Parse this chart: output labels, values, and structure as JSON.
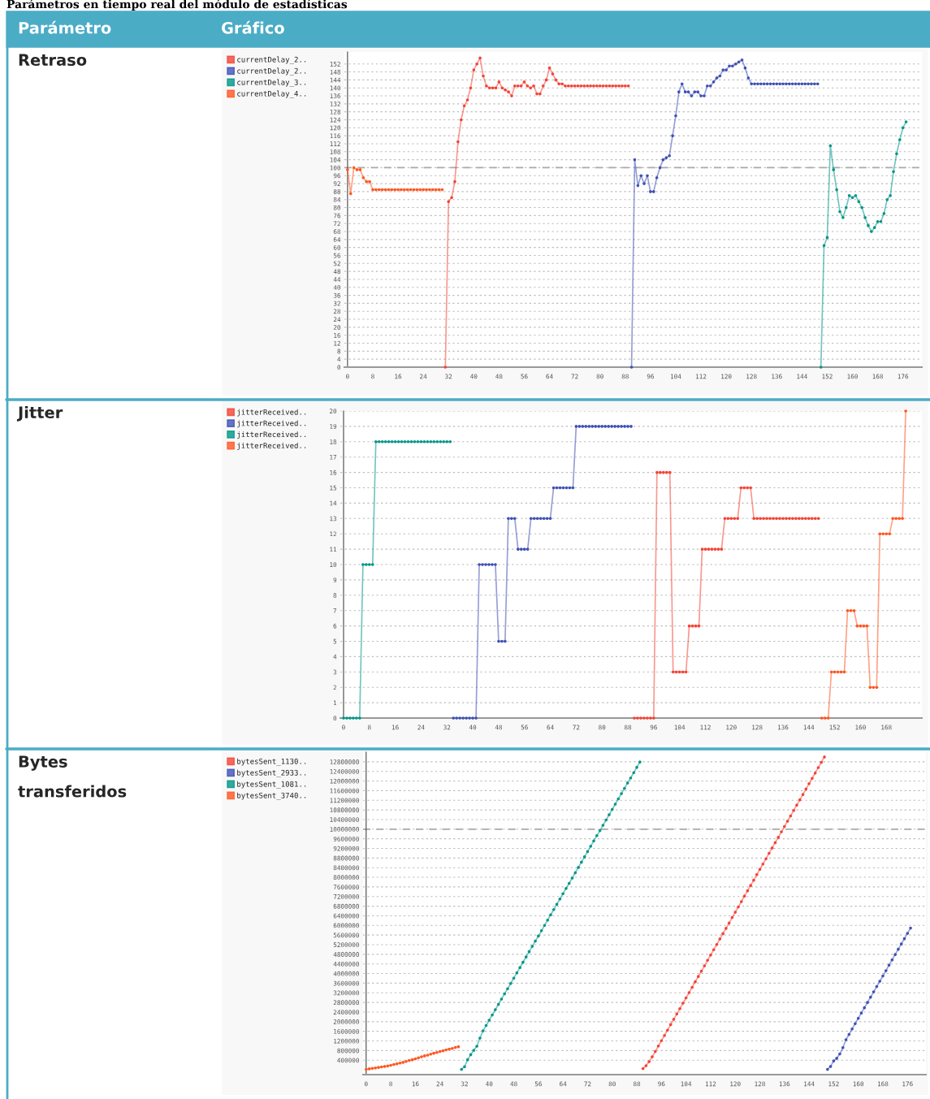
{
  "chart_data": [
    {
      "type": "line",
      "ylabel": "Retraso",
      "annotations": [
        "Parámetros en tiempo real del módulo de estadísticas",
        "Parámetro",
        "Gráfico"
      ],
      "xlim": [
        -1,
        182
      ],
      "ylim": [
        0,
        158
      ],
      "xticks": [
        0,
        8,
        16,
        24,
        32,
        40,
        48,
        56,
        64,
        72,
        80,
        88,
        96,
        104,
        112,
        120,
        128,
        136,
        144,
        152,
        160,
        168,
        176
      ],
      "yticks": [
        0,
        4,
        8,
        12,
        16,
        20,
        24,
        28,
        32,
        36,
        40,
        44,
        48,
        52,
        56,
        60,
        64,
        68,
        72,
        76,
        80,
        84,
        88,
        92,
        96,
        100,
        104,
        108,
        112,
        116,
        120,
        124,
        128,
        132,
        136,
        140,
        144,
        148,
        152
      ],
      "grid": "y",
      "legend": "left",
      "marker": "circle",
      "line_style": "solid",
      "ref_lines": [
        {
          "axis": "y",
          "value": 100,
          "color": "#aaaaaa",
          "line_style": "dashed"
        }
      ],
      "series": [
        {
          "name": "currentDelay_2..",
          "color": "#f44336",
          "x": [
            31,
            32,
            33,
            34,
            35,
            36,
            37,
            38,
            39,
            40,
            41,
            42,
            43,
            44,
            45,
            46,
            47,
            48,
            49,
            50,
            51,
            52,
            53,
            54,
            55,
            56,
            57,
            58,
            59,
            60,
            61,
            62,
            63,
            64,
            65,
            66,
            67,
            68,
            69,
            70,
            71,
            72,
            73,
            74,
            75,
            76,
            77,
            78,
            79,
            80,
            81,
            82,
            83,
            84,
            85,
            86,
            87,
            88,
            89
          ],
          "values": [
            0,
            83,
            85,
            93,
            113,
            124,
            131,
            134,
            140,
            149,
            152,
            155,
            146,
            141,
            140,
            140,
            140,
            143,
            140,
            139,
            138,
            136,
            141,
            141,
            141,
            143,
            141,
            140,
            141,
            137,
            137,
            141,
            144,
            150,
            147,
            144,
            142,
            142,
            141,
            141,
            141,
            141,
            141,
            141,
            141,
            141,
            141,
            141,
            141,
            141,
            141,
            141,
            141,
            141,
            141,
            141,
            141,
            141,
            141
          ]
        },
        {
          "name": "currentDelay_2..",
          "color": "#3f51b5",
          "x": [
            90,
            91,
            92,
            93,
            94,
            95,
            96,
            97,
            98,
            99,
            100,
            101,
            102,
            103,
            104,
            105,
            106,
            107,
            108,
            109,
            110,
            111,
            112,
            113,
            114,
            115,
            116,
            117,
            118,
            119,
            120,
            121,
            122,
            123,
            124,
            125,
            126,
            127,
            128,
            129,
            130,
            131,
            132,
            133,
            134,
            135,
            136,
            137,
            138,
            139,
            140,
            141,
            142,
            143,
            144,
            145,
            146,
            147,
            148,
            149
          ],
          "values": [
            0,
            104,
            91,
            96,
            92,
            96,
            88,
            88,
            95,
            100,
            104,
            105,
            106,
            116,
            126,
            138,
            142,
            138,
            138,
            136,
            138,
            138,
            136,
            136,
            141,
            141,
            143,
            145,
            146,
            149,
            149,
            151,
            151,
            152,
            153,
            154,
            150,
            145,
            142,
            142,
            142,
            142,
            142,
            142,
            142,
            142,
            142,
            142,
            142,
            142,
            142,
            142,
            142,
            142,
            142,
            142,
            142,
            142,
            142,
            142
          ]
        },
        {
          "name": "currentDelay_3..",
          "color": "#009688",
          "x": [
            150,
            151,
            152,
            153,
            154,
            155,
            156,
            157,
            158,
            159,
            160,
            161,
            162,
            163,
            164,
            165,
            166,
            167,
            168,
            169,
            170,
            171,
            172,
            173,
            174,
            175,
            176,
            177
          ],
          "values": [
            0,
            61,
            65,
            111,
            99,
            89,
            78,
            75,
            80,
            86,
            85,
            86,
            83,
            80,
            75,
            71,
            68,
            70,
            73,
            73,
            77,
            84,
            86,
            98,
            107,
            114,
            120,
            123
          ]
        },
        {
          "name": "currentDelay_4..",
          "color": "#ff5722",
          "x": [
            0,
            1,
            2,
            3,
            4,
            5,
            6,
            7,
            8,
            9,
            10,
            11,
            12,
            13,
            14,
            15,
            16,
            17,
            18,
            19,
            20,
            21,
            22,
            23,
            24,
            25,
            26,
            27,
            28,
            29,
            30
          ],
          "values": [
            99,
            87,
            100,
            99,
            99,
            95,
            93,
            93,
            89,
            89,
            89,
            89,
            89,
            89,
            89,
            89,
            89,
            89,
            89,
            89,
            89,
            89,
            89,
            89,
            89,
            89,
            89,
            89,
            89,
            89,
            89
          ]
        }
      ]
    },
    {
      "type": "line",
      "ylabel": "Jitter",
      "xlim": [
        -1,
        179
      ],
      "ylim": [
        0,
        20
      ],
      "xticks": [
        0,
        8,
        16,
        24,
        32,
        40,
        48,
        56,
        64,
        72,
        80,
        88,
        96,
        104,
        112,
        120,
        128,
        136,
        144,
        152,
        160,
        168
      ],
      "yticks": [
        0,
        1,
        2,
        3,
        4,
        5,
        6,
        7,
        8,
        9,
        10,
        11,
        12,
        13,
        14,
        15,
        16,
        17,
        18,
        19,
        20
      ],
      "grid": "y",
      "legend": "left",
      "marker": "circle",
      "line_style": "solid",
      "series": [
        {
          "name": "jitterReceived..",
          "color": "#f44336",
          "x": [
            90,
            91,
            92,
            93,
            94,
            95,
            96,
            97,
            98,
            99,
            100,
            101,
            102,
            103,
            104,
            105,
            106,
            107,
            108,
            109,
            110,
            111,
            112,
            113,
            114,
            115,
            116,
            117,
            118,
            119,
            120,
            121,
            122,
            123,
            124,
            125,
            126,
            127,
            128,
            129,
            130,
            131,
            132,
            133,
            134,
            135,
            136,
            137,
            138,
            139,
            140,
            141,
            142,
            143,
            144,
            145,
            146,
            147
          ],
          "values": [
            0,
            0,
            0,
            0,
            0,
            0,
            0,
            16,
            16,
            16,
            16,
            16,
            3,
            3,
            3,
            3,
            3,
            6,
            6,
            6,
            6,
            11,
            11,
            11,
            11,
            11,
            11,
            11,
            13,
            13,
            13,
            13,
            13,
            15,
            15,
            15,
            15,
            13,
            13,
            13,
            13,
            13,
            13,
            13,
            13,
            13,
            13,
            13,
            13,
            13,
            13,
            13,
            13,
            13,
            13,
            13,
            13,
            13
          ]
        },
        {
          "name": "jitterReceived..",
          "color": "#3f51b5",
          "x": [
            34,
            35,
            36,
            37,
            38,
            39,
            40,
            41,
            42,
            43,
            44,
            45,
            46,
            47,
            48,
            49,
            50,
            51,
            52,
            53,
            54,
            55,
            56,
            57,
            58,
            59,
            60,
            61,
            62,
            63,
            64,
            65,
            66,
            67,
            68,
            69,
            70,
            71,
            72,
            73,
            74,
            75,
            76,
            77,
            78,
            79,
            80,
            81,
            82,
            83,
            84,
            85,
            86,
            87,
            88,
            89
          ],
          "values": [
            0,
            0,
            0,
            0,
            0,
            0,
            0,
            0,
            10,
            10,
            10,
            10,
            10,
            10,
            5,
            5,
            5,
            13,
            13,
            13,
            11,
            11,
            11,
            11,
            13,
            13,
            13,
            13,
            13,
            13,
            13,
            15,
            15,
            15,
            15,
            15,
            15,
            15,
            19,
            19,
            19,
            19,
            19,
            19,
            19,
            19,
            19,
            19,
            19,
            19,
            19,
            19,
            19,
            19,
            19,
            19
          ]
        },
        {
          "name": "jitterReceived..",
          "color": "#009688",
          "x": [
            0,
            1,
            2,
            3,
            4,
            5,
            6,
            7,
            8,
            9,
            10,
            11,
            12,
            13,
            14,
            15,
            16,
            17,
            18,
            19,
            20,
            21,
            22,
            23,
            24,
            25,
            26,
            27,
            28,
            29,
            30,
            31,
            32,
            33
          ],
          "values": [
            0,
            0,
            0,
            0,
            0,
            0,
            10,
            10,
            10,
            10,
            18,
            18,
            18,
            18,
            18,
            18,
            18,
            18,
            18,
            18,
            18,
            18,
            18,
            18,
            18,
            18,
            18,
            18,
            18,
            18,
            18,
            18,
            18,
            18
          ]
        },
        {
          "name": "jitterReceived..",
          "color": "#ff5722",
          "x": [
            148,
            149,
            150,
            151,
            152,
            153,
            154,
            155,
            156,
            157,
            158,
            159,
            160,
            161,
            162,
            163,
            164,
            165,
            166,
            167,
            168,
            169,
            170,
            171,
            172,
            173,
            174
          ],
          "values": [
            0,
            0,
            0,
            3,
            3,
            3,
            3,
            3,
            7,
            7,
            7,
            6,
            6,
            6,
            6,
            2,
            2,
            2,
            12,
            12,
            12,
            12,
            13,
            13,
            13,
            13,
            20
          ]
        }
      ]
    },
    {
      "type": "line",
      "ylabel": "Bytes transferidos",
      "xlim": [
        -1,
        182
      ],
      "ylim": [
        -200000,
        13200000
      ],
      "xticks": [
        0,
        8,
        16,
        24,
        32,
        40,
        48,
        56,
        64,
        72,
        80,
        88,
        96,
        104,
        112,
        120,
        128,
        136,
        144,
        152,
        160,
        168,
        176
      ],
      "yticks": [
        400000,
        800000,
        1200000,
        1600000,
        2000000,
        2400000,
        2800000,
        3200000,
        3600000,
        4000000,
        4400000,
        4800000,
        5200000,
        5600000,
        6000000,
        6400000,
        6800000,
        7200000,
        7600000,
        8000000,
        8400000,
        8800000,
        9200000,
        9600000,
        10000000,
        10400000,
        10800000,
        11200000,
        11600000,
        12000000,
        12400000,
        12800000
      ],
      "grid": "y",
      "legend": "left",
      "marker": "circle",
      "line_style": "solid",
      "ref_lines": [
        {
          "axis": "y",
          "value": 10000000,
          "color": "#aaaaaa",
          "line_style": "dashed"
        }
      ],
      "series": [
        {
          "name": "bytesSent_1130..",
          "color": "#f44336",
          "x": [
            90,
            91,
            92,
            93,
            94,
            95,
            96,
            97,
            98,
            99,
            100,
            101,
            102,
            103,
            104,
            105,
            106,
            107,
            108,
            109,
            110,
            111,
            112,
            113,
            114,
            115,
            116,
            117,
            118,
            119,
            120,
            121,
            122,
            123,
            124,
            125,
            126,
            127,
            128,
            129,
            130,
            131,
            132,
            133,
            134,
            135,
            136,
            137,
            138,
            139,
            140,
            141,
            142,
            143,
            144,
            145,
            146,
            147,
            148,
            149
          ],
          "values": [
            50000,
            170000,
            340000,
            540000,
            760000,
            990000,
            1210000,
            1430000,
            1650000,
            1880000,
            2100000,
            2320000,
            2540000,
            2770000,
            2990000,
            3210000,
            3430000,
            3660000,
            3880000,
            4100000,
            4320000,
            4550000,
            4770000,
            4990000,
            5210000,
            5440000,
            5660000,
            5880000,
            6100000,
            6330000,
            6550000,
            6770000,
            6990000,
            7220000,
            7440000,
            7660000,
            7880000,
            8110000,
            8330000,
            8550000,
            8770000,
            9000000,
            9220000,
            9440000,
            9660000,
            9890000,
            10110000,
            10330000,
            10550000,
            10780000,
            11000000,
            11220000,
            11440000,
            11670000,
            11890000,
            12110000,
            12330000,
            12560000,
            12780000,
            13000000
          ]
        },
        {
          "name": "bytesSent_2933..",
          "color": "#3f51b5",
          "x": [
            150,
            151,
            152,
            153,
            154,
            155,
            156,
            157,
            158,
            159,
            160,
            161,
            162,
            163,
            164,
            165,
            166,
            167,
            168,
            169,
            170,
            171,
            172,
            173,
            174,
            175,
            176,
            177
          ],
          "values": [
            20000,
            140000,
            370000,
            480000,
            660000,
            920000,
            1250000,
            1470000,
            1700000,
            1920000,
            2140000,
            2360000,
            2580000,
            2800000,
            3020000,
            3240000,
            3460000,
            3680000,
            3900000,
            4120000,
            4350000,
            4570000,
            4790000,
            5010000,
            5230000,
            5450000,
            5670000,
            5890000
          ]
        },
        {
          "name": "bytesSent_1081..",
          "color": "#009688",
          "x": [
            31,
            32,
            33,
            34,
            35,
            36,
            37,
            38,
            39,
            40,
            41,
            42,
            43,
            44,
            45,
            46,
            47,
            48,
            49,
            50,
            51,
            52,
            53,
            54,
            55,
            56,
            57,
            58,
            59,
            60,
            61,
            62,
            63,
            64,
            65,
            66,
            67,
            68,
            69,
            70,
            71,
            72,
            73,
            74,
            75,
            76,
            77,
            78,
            79,
            80,
            81,
            82,
            83,
            84,
            85,
            86,
            87,
            88,
            89
          ],
          "values": [
            20000,
            130000,
            420000,
            630000,
            810000,
            980000,
            1320000,
            1620000,
            1840000,
            2060000,
            2280000,
            2500000,
            2720000,
            2940000,
            3160000,
            3370000,
            3590000,
            3810000,
            4030000,
            4250000,
            4470000,
            4690000,
            4910000,
            5130000,
            5350000,
            5560000,
            5780000,
            6000000,
            6220000,
            6440000,
            6660000,
            6880000,
            7100000,
            7320000,
            7540000,
            7750000,
            7970000,
            8190000,
            8410000,
            8630000,
            8850000,
            9070000,
            9290000,
            9510000,
            9730000,
            9940000,
            10160000,
            10380000,
            10600000,
            10820000,
            11040000,
            11260000,
            11480000,
            11700000,
            11920000,
            12130000,
            12350000,
            12570000,
            12790000
          ]
        },
        {
          "name": "bytesSent_3740..",
          "color": "#ff5722",
          "x": [
            0,
            1,
            2,
            3,
            4,
            5,
            6,
            7,
            8,
            9,
            10,
            11,
            12,
            13,
            14,
            15,
            16,
            17,
            18,
            19,
            20,
            21,
            22,
            23,
            24,
            25,
            26,
            27,
            28,
            29,
            30
          ],
          "values": [
            20000,
            40000,
            60000,
            80000,
            100000,
            120000,
            140000,
            160000,
            190000,
            220000,
            250000,
            280000,
            310000,
            350000,
            390000,
            420000,
            460000,
            500000,
            540000,
            580000,
            610000,
            650000,
            690000,
            720000,
            760000,
            790000,
            830000,
            860000,
            890000,
            930000,
            960000
          ]
        }
      ]
    }
  ]
}
